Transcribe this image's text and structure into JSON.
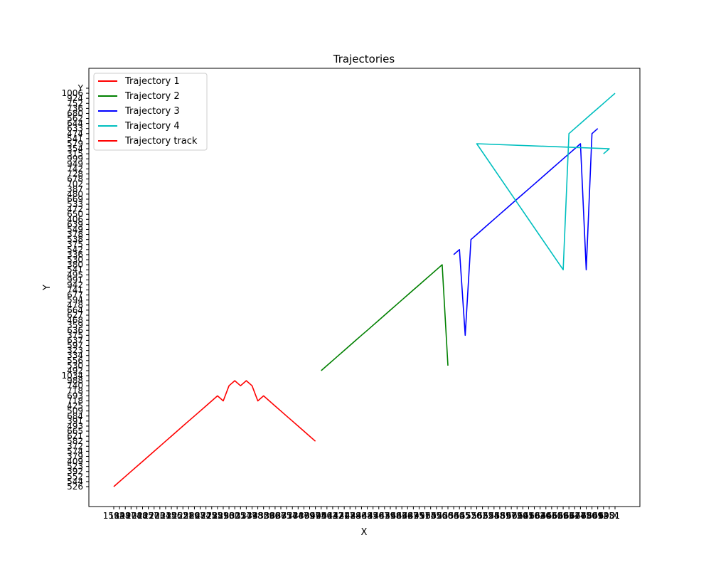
{
  "chart_data": {
    "type": "line",
    "title": "Trajectories",
    "xlabel": "X",
    "ylabel": "Y",
    "legend_position": "top-left",
    "grid": false,
    "x_ticks": [
      "1592",
      "1848",
      "1917",
      "1974",
      "2088",
      "2165",
      "2177",
      "2203",
      "2304",
      "2315",
      "2356",
      "2452",
      "2521",
      "2589",
      "2607",
      "2684",
      "2725",
      "2775",
      "2831",
      "2896",
      "2932",
      "3005",
      "3114",
      "3277",
      "3398",
      "3452",
      "3509",
      "3586",
      "3627",
      "3665",
      "3714",
      "3774",
      "3847",
      "3869",
      "3927",
      "3995",
      "4040",
      "4082",
      "4142",
      "4171",
      "4207",
      "4288",
      "4296",
      "4338",
      "4415",
      "4476",
      "4487",
      "4539",
      "4558",
      "4603",
      "4666",
      "4727",
      "4835",
      "4911",
      "4973",
      "5045",
      "5096",
      "5200",
      "5286",
      "5330",
      "5425",
      "5477",
      "5520",
      "5582",
      "5632",
      "5694",
      "5758",
      "5831",
      "5897",
      "5972",
      "6090",
      "6145",
      "6216",
      "6282",
      "6340",
      "6393",
      "6460",
      "6529",
      "6583",
      "6664",
      "6724",
      "6775",
      "6830",
      "6869",
      "6912",
      "6945",
      "6981",
      "X"
    ],
    "y_ticks": [
      "526",
      "544",
      "552",
      "392",
      "523",
      "409",
      "379",
      "574",
      "372",
      "582",
      "621",
      "665",
      "493",
      "391",
      "684",
      "509",
      "425",
      "718",
      "693",
      "718",
      "740",
      "988",
      "1034",
      "492",
      "530",
      "556",
      "334",
      "323",
      "597",
      "637",
      "375",
      "636",
      "359",
      "468",
      "627",
      "664",
      "478",
      "594",
      "677",
      "741",
      "942",
      "991",
      "495",
      "541",
      "380",
      "530",
      "336",
      "542",
      "375",
      "538",
      "378",
      "549",
      "639",
      "406",
      "650",
      "472",
      "533",
      "669",
      "480",
      "387",
      "702",
      "678",
      "728",
      "742",
      "949",
      "999",
      "315",
      "354",
      "579",
      "541",
      "474",
      "633",
      "644",
      "562",
      "680",
      "736",
      "752",
      "924",
      "1006",
      "Y"
    ],
    "series": [
      {
        "name": "Trajectory 1",
        "color": "#ff0000",
        "x": [
          "1592",
          "1848",
          "1917",
          "1974",
          "2088",
          "2165",
          "2177",
          "2203",
          "2304",
          "2315",
          "2356",
          "2452",
          "2521",
          "2589",
          "2607",
          "2684",
          "2725",
          "2775",
          "2831",
          "2896",
          "2932",
          "3005",
          "3114",
          "3277",
          "3398",
          "3452",
          "3509",
          "3586",
          "3627",
          "3665",
          "3714",
          "3774",
          "3847",
          "3869",
          "3927",
          "3995"
        ],
        "y": [
          "526",
          "544",
          "552",
          "392",
          "523",
          "409",
          "379",
          "574",
          "372",
          "582",
          "621",
          "665",
          "493",
          "391",
          "684",
          "509",
          "425",
          "718",
          "693",
          "718",
          "740",
          "988",
          "740",
          "988",
          "740",
          "718",
          "693",
          "718",
          "425",
          "509",
          "684",
          "391",
          "493",
          "665",
          "621",
          "582"
        ]
      },
      {
        "name": "Trajectory 2",
        "color": "#008000",
        "x": [
          "4040",
          "4082",
          "4142",
          "4171",
          "4207",
          "4288",
          "4296",
          "4338",
          "4415",
          "4476",
          "4487",
          "4539",
          "4558",
          "4603",
          "4666",
          "4727",
          "4835",
          "4911",
          "4973",
          "5045",
          "5096",
          "5200",
          "5286"
        ],
        "y": [
          "492",
          "530",
          "556",
          "334",
          "323",
          "597",
          "637",
          "375",
          "636",
          "359",
          "468",
          "627",
          "664",
          "478",
          "594",
          "677",
          "741",
          "942",
          "991",
          "495",
          "541",
          "380",
          "530"
        ]
      },
      {
        "name": "Trajectory 3",
        "color": "#0000ff",
        "x": [
          "5330",
          "5425",
          "5477",
          "5520",
          "5582",
          "5632",
          "5694",
          "5758",
          "5831",
          "5897",
          "5972",
          "6090",
          "6145",
          "6216",
          "6282",
          "6340",
          "6393",
          "6460",
          "6529",
          "6583",
          "6664",
          "6724",
          "6775",
          "6830",
          "6869",
          "6912"
        ],
        "y": [
          "336",
          "542",
          "375",
          "538",
          "378",
          "549",
          "639",
          "406",
          "650",
          "472",
          "533",
          "669",
          "480",
          "387",
          "702",
          "678",
          "728",
          "742",
          "949",
          "999",
          "315",
          "354",
          "579",
          "541",
          "474",
          "633"
        ]
      },
      {
        "name": "Trajectory 4",
        "color": "#00bfbf",
        "x": [
          "6945",
          "6981",
          "5582",
          "6583",
          "6664",
          "6724",
          "6775",
          "6830",
          "6869",
          "6912",
          "6945",
          "6981",
          "X"
        ],
        "y": [
          "315",
          "354",
          "579",
          "541",
          "474",
          "633",
          "644",
          "562",
          "680",
          "736",
          "752",
          "924",
          "1006"
        ]
      },
      {
        "name": "Trajectory track",
        "color": "#ff0000",
        "x": [],
        "y": []
      }
    ]
  }
}
